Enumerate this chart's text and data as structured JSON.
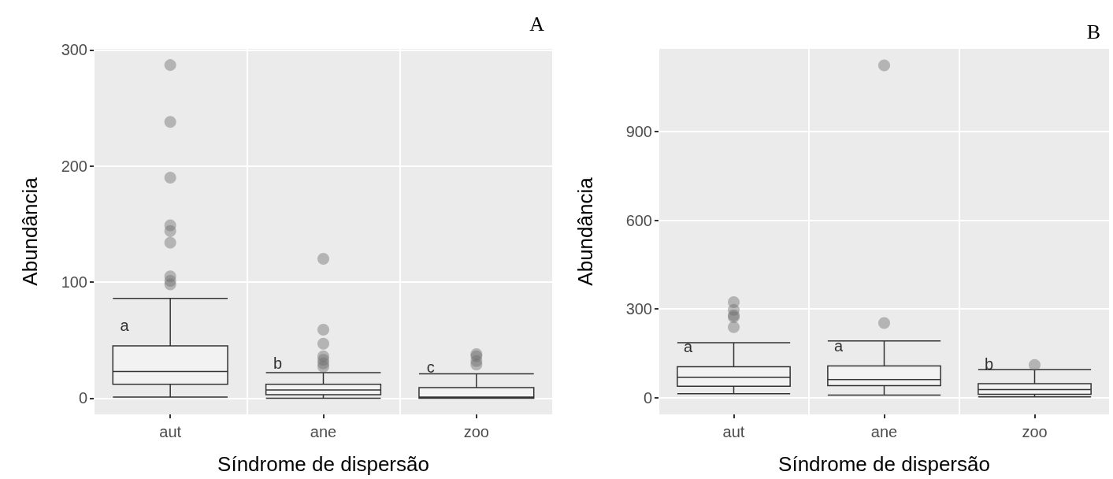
{
  "chart_data": [
    {
      "type": "box",
      "title": "A",
      "xlabel": "Síndrome de dispersão",
      "ylabel": "Abundância",
      "categories": [
        "aut",
        "ane",
        "zoo"
      ],
      "boxes": [
        {
          "low": 1,
          "q1": 12,
          "median": 23,
          "q3": 45,
          "high": 86,
          "outliers": [
            287,
            238,
            190,
            149,
            144,
            134,
            105,
            101,
            98
          ]
        },
        {
          "low": 0,
          "q1": 3,
          "median": 7,
          "q3": 12,
          "high": 22,
          "outliers": [
            120,
            59,
            47,
            36,
            33,
            30,
            27
          ]
        },
        {
          "low": 0,
          "q1": 0,
          "median": 1,
          "q3": 9,
          "high": 21,
          "outliers": [
            38,
            36,
            32,
            29
          ]
        }
      ],
      "ylim": [
        -14,
        301
      ],
      "yticks": [
        0,
        100,
        200,
        300
      ],
      "grid": true,
      "annotations": [
        {
          "text": "a",
          "x": "aut",
          "y": 46
        },
        {
          "text": "b",
          "x": "ane",
          "y": 13
        },
        {
          "text": "c",
          "x": "zoo",
          "y": 10
        }
      ]
    },
    {
      "type": "box",
      "title": "B",
      "xlabel": "Síndrome de dispersão",
      "ylabel": "Abundância",
      "categories": [
        "aut",
        "ane",
        "zoo"
      ],
      "boxes": [
        {
          "low": 14,
          "q1": 39,
          "median": 69,
          "q3": 105,
          "high": 186,
          "outliers": [
            323,
            297,
            279,
            273,
            239
          ]
        },
        {
          "low": 9,
          "q1": 41,
          "median": 62,
          "q3": 108,
          "high": 192,
          "outliers": [
            1123,
            253
          ]
        },
        {
          "low": 3,
          "q1": 12,
          "median": 28,
          "q3": 48,
          "high": 95,
          "outliers": [
            111
          ]
        }
      ],
      "ylim": [
        -56,
        1179
      ],
      "yticks": [
        0,
        300,
        600,
        900
      ],
      "grid": true,
      "annotations": [
        {
          "text": "a",
          "x": "aut",
          "y": 106
        },
        {
          "text": "a",
          "x": "ane",
          "y": 109
        },
        {
          "text": "b",
          "x": "zoo",
          "y": 49
        }
      ]
    }
  ]
}
